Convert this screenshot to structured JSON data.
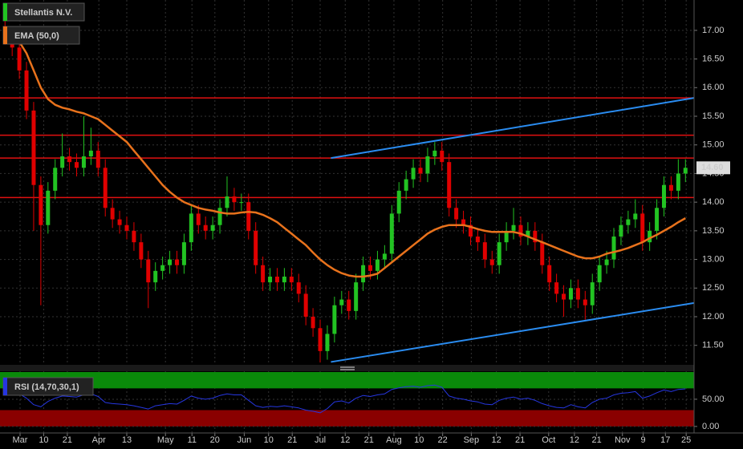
{
  "chart_data": [
    {
      "type": "candlestick",
      "title": "Stellantis N.V.",
      "open": [
        17.0,
        16.9,
        16.7,
        16.3,
        15.6,
        14.3,
        13.6,
        14.2,
        14.6,
        14.8,
        14.7,
        14.6,
        14.8,
        14.9,
        14.6,
        13.9,
        13.7,
        13.6,
        13.5,
        13.3,
        13.0,
        12.6,
        12.8,
        12.9,
        13.0,
        12.9,
        13.3,
        13.8,
        13.6,
        13.5,
        13.6,
        13.9,
        14.1,
        14.0,
        14.0,
        13.5,
        12.9,
        12.6,
        12.7,
        12.6,
        12.7,
        12.6,
        12.4,
        12.0,
        11.8,
        11.4,
        11.7,
        12.2,
        12.3,
        12.1,
        12.6,
        12.9,
        12.8,
        13.0,
        13.1,
        13.8,
        14.2,
        14.4,
        14.6,
        14.5,
        14.8,
        14.9,
        14.7,
        13.9,
        13.7,
        13.6,
        13.4,
        13.3,
        13.0,
        12.9,
        13.3,
        13.5,
        13.6,
        13.4,
        13.5,
        13.3,
        12.9,
        12.6,
        12.4,
        12.3,
        12.5,
        12.3,
        12.2,
        12.6,
        12.9,
        13.0,
        13.4,
        13.6,
        13.7,
        13.8,
        13.3,
        13.5,
        13.9,
        14.3,
        14.2,
        14.5
      ],
      "high": [
        17.4,
        17.05,
        16.85,
        16.45,
        15.75,
        14.45,
        14.35,
        14.75,
        15.2,
        14.95,
        14.85,
        15.5,
        15.3,
        15.05,
        14.75,
        14.05,
        13.85,
        13.75,
        13.65,
        13.45,
        13.15,
        12.95,
        13.05,
        13.15,
        13.15,
        13.45,
        13.95,
        13.95,
        13.75,
        13.75,
        14.05,
        14.45,
        14.25,
        14.15,
        14.15,
        13.65,
        13.05,
        12.85,
        12.85,
        12.85,
        12.85,
        12.75,
        12.55,
        12.15,
        11.95,
        11.85,
        12.35,
        12.45,
        12.45,
        12.75,
        13.05,
        13.05,
        13.15,
        13.25,
        13.95,
        14.35,
        14.55,
        14.75,
        14.75,
        14.95,
        15.05,
        15.05,
        14.85,
        14.05,
        13.85,
        13.75,
        13.55,
        13.45,
        13.15,
        13.45,
        13.65,
        13.9,
        13.75,
        13.65,
        13.65,
        13.45,
        13.05,
        12.75,
        12.55,
        12.65,
        12.65,
        12.45,
        12.75,
        13.05,
        13.15,
        13.55,
        13.75,
        13.85,
        14.05,
        13.95,
        13.65,
        14.05,
        14.45,
        14.45,
        14.75,
        14.75
      ],
      "low": [
        16.75,
        16.55,
        16.15,
        15.45,
        13.5,
        12.2,
        13.45,
        14.05,
        14.45,
        14.55,
        14.45,
        14.45,
        14.65,
        14.45,
        13.75,
        13.55,
        13.45,
        13.35,
        13.15,
        12.85,
        12.15,
        12.45,
        12.65,
        12.75,
        12.75,
        12.75,
        13.15,
        13.45,
        13.35,
        13.35,
        13.45,
        13.75,
        13.85,
        13.85,
        13.35,
        12.75,
        12.45,
        12.45,
        12.45,
        12.45,
        12.45,
        12.25,
        11.85,
        11.65,
        11.2,
        11.25,
        11.55,
        12.05,
        11.95,
        11.95,
        12.45,
        12.65,
        12.65,
        12.85,
        12.95,
        13.65,
        14.05,
        14.25,
        14.35,
        14.35,
        14.65,
        14.55,
        13.75,
        13.55,
        13.45,
        13.25,
        13.15,
        12.85,
        12.75,
        12.75,
        13.15,
        13.35,
        13.25,
        13.25,
        13.15,
        12.75,
        12.45,
        12.25,
        12.0,
        12.15,
        12.15,
        11.95,
        12.05,
        12.45,
        12.75,
        12.85,
        13.25,
        13.45,
        13.55,
        13.15,
        13.15,
        13.35,
        13.75,
        14.05,
        14.05,
        14.35
      ],
      "close": [
        16.9,
        16.7,
        16.3,
        15.6,
        14.3,
        13.6,
        14.2,
        14.6,
        14.8,
        14.7,
        14.6,
        14.8,
        14.9,
        14.6,
        13.9,
        13.7,
        13.6,
        13.5,
        13.3,
        13.0,
        12.6,
        12.8,
        12.9,
        13.0,
        12.9,
        13.3,
        13.8,
        13.6,
        13.5,
        13.6,
        13.9,
        14.1,
        14.0,
        14.0,
        13.5,
        12.9,
        12.6,
        12.7,
        12.6,
        12.7,
        12.6,
        12.4,
        12.0,
        11.8,
        11.4,
        11.7,
        12.2,
        12.3,
        12.1,
        12.6,
        12.9,
        12.8,
        13.0,
        13.1,
        13.8,
        14.2,
        14.4,
        14.6,
        14.5,
        14.8,
        14.9,
        14.7,
        13.9,
        13.7,
        13.6,
        13.4,
        13.3,
        13.0,
        12.9,
        13.3,
        13.5,
        13.6,
        13.4,
        13.5,
        13.3,
        12.9,
        12.6,
        12.4,
        12.3,
        12.5,
        12.3,
        12.2,
        12.6,
        12.9,
        13.0,
        13.4,
        13.6,
        13.7,
        13.8,
        13.3,
        13.5,
        13.9,
        14.3,
        14.2,
        14.5,
        14.6
      ],
      "up_color": "#22c322",
      "down_color": "#e00000",
      "series": [
        {
          "name": "EMA (50,0)",
          "color": "#e8721c",
          "values": [
            17.05,
            16.95,
            16.8,
            16.6,
            16.3,
            16.0,
            15.8,
            15.7,
            15.65,
            15.62,
            15.58,
            15.55,
            15.5,
            15.45,
            15.35,
            15.25,
            15.15,
            15.05,
            14.9,
            14.75,
            14.6,
            14.45,
            14.3,
            14.18,
            14.08,
            14.0,
            13.95,
            13.9,
            13.87,
            13.85,
            13.82,
            13.8,
            13.8,
            13.82,
            13.83,
            13.82,
            13.78,
            13.72,
            13.65,
            13.55,
            13.45,
            13.35,
            13.25,
            13.12,
            13.0,
            12.9,
            12.82,
            12.76,
            12.72,
            12.7,
            12.7,
            12.72,
            12.75,
            12.85,
            12.95,
            13.05,
            13.15,
            13.25,
            13.35,
            13.45,
            13.52,
            13.57,
            13.6,
            13.6,
            13.6,
            13.57,
            13.53,
            13.5,
            13.48,
            13.48,
            13.48,
            13.48,
            13.45,
            13.4,
            13.35,
            13.3,
            13.25,
            13.2,
            13.15,
            13.1,
            13.05,
            13.02,
            13.02,
            13.05,
            13.1,
            13.13,
            13.16,
            13.2,
            13.25,
            13.3,
            13.37,
            13.43,
            13.5,
            13.57,
            13.65,
            13.72
          ]
        }
      ],
      "hlines": [
        15.82,
        15.17,
        14.77,
        14.08
      ],
      "hline_color": "#e01010",
      "trendlines": [
        {
          "x": [
            45.5,
            96.2
          ],
          "y": [
            14.77,
            15.82
          ]
        },
        {
          "x": [
            45.5,
            96.2
          ],
          "y": [
            11.21,
            12.24
          ]
        }
      ],
      "trendline_color": "#2a8cf0",
      "last_price": {
        "value": 14.6,
        "label": "14.60"
      },
      "xlim": [
        -0.7,
        96.2
      ],
      "xticks": [
        {
          "value": 2.1,
          "label": "Mar"
        },
        {
          "value": 5.4,
          "label": "10"
        },
        {
          "value": 8.7,
          "label": "21"
        },
        {
          "value": 13.1,
          "label": "Apr"
        },
        {
          "value": 17.0,
          "label": "13"
        },
        {
          "value": 22.4,
          "label": "May"
        },
        {
          "value": 26.1,
          "label": "11"
        },
        {
          "value": 29.3,
          "label": "20"
        },
        {
          "value": 33.4,
          "label": "Jun"
        },
        {
          "value": 36.8,
          "label": "10"
        },
        {
          "value": 40.1,
          "label": "21"
        },
        {
          "value": 44.0,
          "label": "Jul"
        },
        {
          "value": 47.5,
          "label": "12"
        },
        {
          "value": 50.8,
          "label": "21"
        },
        {
          "value": 54.3,
          "label": "Aug"
        },
        {
          "value": 57.8,
          "label": "10"
        },
        {
          "value": 61.1,
          "label": "22"
        },
        {
          "value": 65.1,
          "label": "Sep"
        },
        {
          "value": 68.6,
          "label": "12"
        },
        {
          "value": 71.9,
          "label": "21"
        },
        {
          "value": 75.9,
          "label": "Oct"
        },
        {
          "value": 79.5,
          "label": "12"
        },
        {
          "value": 82.6,
          "label": "21"
        },
        {
          "value": 86.2,
          "label": "Nov"
        },
        {
          "value": 89.1,
          "label": "9"
        },
        {
          "value": 92.2,
          "label": "17"
        },
        {
          "value": 95.1,
          "label": "25"
        }
      ],
      "ylim": [
        11.16,
        17.53
      ],
      "yticks": [
        {
          "value": 17,
          "label": "17.00"
        },
        {
          "value": 16.5,
          "label": "16.50"
        },
        {
          "value": 16,
          "label": "16.00"
        },
        {
          "value": 15.5,
          "label": "15.50"
        },
        {
          "value": 15,
          "label": "15.00"
        },
        {
          "value": 14.5,
          "label": "14.50"
        },
        {
          "value": 14,
          "label": "14.00"
        },
        {
          "value": 13.5,
          "label": "13.50"
        },
        {
          "value": 13,
          "label": "13.00"
        },
        {
          "value": 12.5,
          "label": "12.50"
        },
        {
          "value": 12,
          "label": "12.00"
        },
        {
          "value": 11.5,
          "label": "11.50"
        }
      ],
      "grid": true
    },
    {
      "type": "line",
      "series": [
        {
          "name": "RSI (14,70,30,1)",
          "color": "#2636e0",
          "values": [
            70,
            66,
            60,
            52,
            40,
            36,
            46,
            52,
            56,
            55,
            54,
            58,
            60,
            55,
            44,
            42,
            41,
            40,
            38,
            35,
            32,
            38,
            40,
            42,
            41,
            48,
            56,
            52,
            50,
            52,
            57,
            60,
            58,
            58,
            48,
            38,
            35,
            37,
            36,
            38,
            36,
            34,
            30,
            28,
            25,
            33,
            45,
            47,
            43,
            52,
            57,
            55,
            58,
            60,
            68,
            71,
            73,
            74,
            72,
            75,
            76,
            72,
            56,
            52,
            50,
            47,
            45,
            41,
            40,
            48,
            52,
            54,
            50,
            52,
            48,
            42,
            38,
            35,
            34,
            40,
            36,
            34,
            44,
            50,
            52,
            58,
            61,
            62,
            64,
            52,
            56,
            62,
            67,
            64,
            68,
            69
          ]
        }
      ],
      "bands": [
        {
          "from": 70,
          "to": 100,
          "color": "#0a8a0a"
        },
        {
          "from": 0,
          "to": 30,
          "color": "#8a0000"
        }
      ],
      "ylim": [
        -12,
        101.5
      ],
      "yticks": [
        {
          "value": 50,
          "label": "50.00"
        },
        {
          "value": 0,
          "label": "0.00"
        }
      ],
      "grid": true
    }
  ]
}
